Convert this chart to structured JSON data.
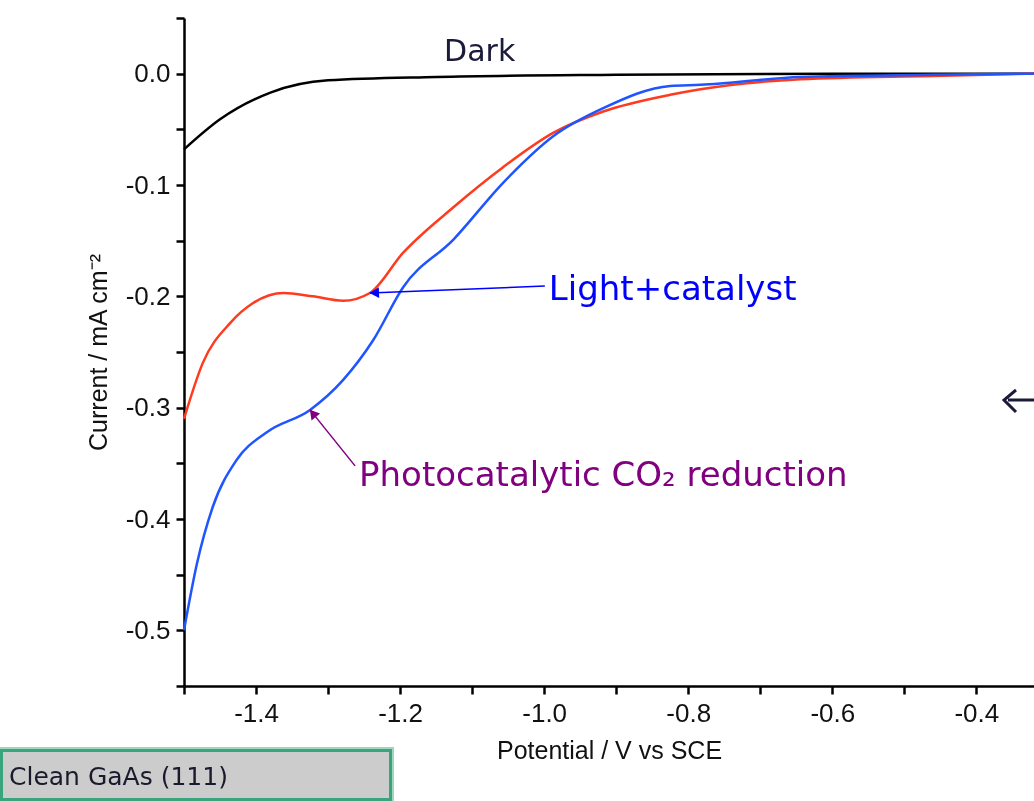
{
  "chart_data": {
    "type": "line",
    "xlabel": "Potential / V vs SCE",
    "ylabel": "Current / mA cm⁻²",
    "xlim": [
      -1.5,
      -0.32
    ],
    "ylim": [
      -0.55,
      0.05
    ],
    "xticks": [
      {
        "value": -1.5,
        "label": null
      },
      {
        "value": -1.4,
        "label": "-1.4"
      },
      {
        "value": -1.3,
        "label": null
      },
      {
        "value": -1.2,
        "label": "-1.2"
      },
      {
        "value": -1.1,
        "label": null
      },
      {
        "value": -1.0,
        "label": "-1.0"
      },
      {
        "value": -0.9,
        "label": null
      },
      {
        "value": -0.8,
        "label": "-0.8"
      },
      {
        "value": -0.7,
        "label": null
      },
      {
        "value": -0.6,
        "label": "-0.6"
      },
      {
        "value": -0.5,
        "label": null
      },
      {
        "value": -0.4,
        "label": "-0.4"
      }
    ],
    "yticks": [
      {
        "value": -0.55,
        "label": null
      },
      {
        "value": -0.5,
        "label": "-0.5"
      },
      {
        "value": -0.45,
        "label": null
      },
      {
        "value": -0.4,
        "label": "-0.4"
      },
      {
        "value": -0.35,
        "label": null
      },
      {
        "value": -0.3,
        "label": "-0.3"
      },
      {
        "value": -0.25,
        "label": null
      },
      {
        "value": -0.2,
        "label": "-0.2"
      },
      {
        "value": -0.15,
        "label": null
      },
      {
        "value": -0.1,
        "label": "-0.1"
      },
      {
        "value": -0.05,
        "label": null
      },
      {
        "value": 0.0,
        "label": "0.0"
      },
      {
        "value": 0.05,
        "label": null
      }
    ],
    "grid": false,
    "marker": "none",
    "line_style": "solid",
    "series": [
      {
        "name": "Dark",
        "color": "#000000",
        "x": [
          -1.5,
          -1.45,
          -1.38,
          -1.3,
          -1.15,
          -0.9,
          -0.6,
          -0.32
        ],
        "values": [
          -0.068,
          -0.041,
          -0.017,
          -0.006,
          -0.003,
          -0.001,
          0,
          0
        ]
      },
      {
        "color": "#ff3b1f",
        "x": [
          -1.5,
          -1.474,
          -1.436,
          -1.404,
          -1.362,
          -1.321,
          -1.279,
          -1.242,
          -1.196,
          -1.126,
          -1.057,
          -0.987,
          -0.918,
          -0.825,
          -0.783,
          -0.644,
          -0.46,
          -0.32
        ],
        "values": [
          -0.31,
          -0.26,
          -0.224,
          -0.206,
          -0.197,
          -0.2,
          -0.204,
          -0.197,
          -0.161,
          -0.12,
          -0.084,
          -0.053,
          -0.034,
          -0.019,
          -0.014,
          -0.005,
          -0.002,
          0
        ]
      },
      {
        "color": "#1f55ff",
        "x": [
          -1.5,
          -1.482,
          -1.46,
          -1.427,
          -1.385,
          -1.325,
          -1.279,
          -1.237,
          -1.196,
          -1.126,
          -1.057,
          -0.987,
          -0.918,
          -0.825,
          -0.783,
          -0.644,
          -0.46,
          -0.32
        ],
        "values": [
          -0.5,
          -0.44,
          -0.389,
          -0.347,
          -0.322,
          -0.302,
          -0.275,
          -0.239,
          -0.192,
          -0.149,
          -0.098,
          -0.056,
          -0.031,
          -0.011,
          -0.01,
          -0.003,
          -0.001,
          0
        ]
      }
    ],
    "annotations": [
      {
        "text": "Light+catalyst",
        "x": -1.242,
        "y": -0.197
      },
      {
        "text": "Photocatalytic CO₂ reduction",
        "x": -1.325,
        "y": -0.302
      },
      "Clean GaAs (111)"
    ]
  }
}
